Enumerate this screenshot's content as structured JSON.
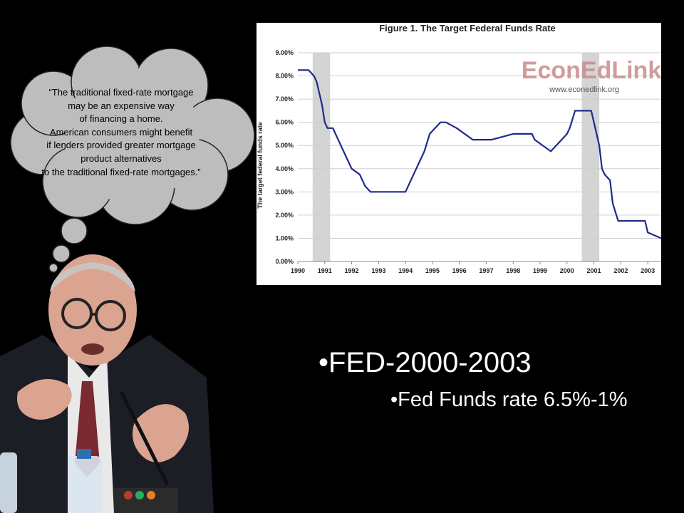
{
  "quote": {
    "lines": [
      "“The traditional fixed-rate mortgage",
      "may be an expensive way",
      "of financing a home.",
      "American consumers might benefit",
      "if lenders provided greater mortgage",
      "product alternatives",
      "to the traditional fixed-rate mortgages.”"
    ]
  },
  "bullets": {
    "main": "•FED-2000-2003",
    "sub": "•Fed Funds rate 6.5%-1%"
  },
  "watermark": {
    "brand": "EconEdLink",
    "url": "www.econedlink.org"
  },
  "colors": {
    "background": "#000000",
    "cloud": "#bdbdbd",
    "line": "#1f2a8c",
    "recession": "#d4d4d4",
    "watermark": "#c98b8b"
  },
  "chart_data": {
    "type": "line",
    "title": "Figure 1.  The Target Federal Funds Rate",
    "xlabel": "",
    "ylabel": "The target federal funds rate",
    "xlim": [
      1990,
      2003.5
    ],
    "ylim": [
      0,
      9
    ],
    "x_ticks": [
      "1990",
      "1991",
      "1992",
      "1993",
      "1994",
      "1995",
      "1996",
      "1997",
      "1998",
      "1999",
      "2000",
      "2001",
      "2002",
      "2003"
    ],
    "y_ticks": [
      "0.00%",
      "1.00%",
      "2.00%",
      "3.00%",
      "4.00%",
      "5.00%",
      "6.00%",
      "7.00%",
      "8.00%",
      "9.00%"
    ],
    "grid": true,
    "recessions": [
      [
        1990.55,
        1991.2
      ],
      [
        2000.55,
        2001.2
      ]
    ],
    "series": [
      {
        "x": [
          1990,
          1990.4,
          1990.6,
          1990.7,
          1990.8,
          1990.9,
          1991.0,
          1991.1,
          1991.3,
          1991.4,
          1991.5,
          1991.6,
          1991.8,
          1992.0,
          1992.3,
          1992.5,
          1992.7,
          1993.0,
          1993.5,
          1994.0,
          1994.1,
          1994.3,
          1994.5,
          1994.7,
          1994.9,
          1995.3,
          1995.5,
          1995.9,
          1996.5,
          1997.2,
          1998.0,
          1998.7,
          1998.8,
          1999.4,
          1999.6,
          1999.8,
          2000.0,
          2000.1,
          2000.3,
          2000.9,
          2001.0,
          2001.2,
          2001.3,
          2001.4,
          2001.6,
          2001.7,
          2001.9,
          2002.0,
          2002.9,
          2003.0,
          2003.5
        ],
        "y": [
          8.25,
          8.25,
          8.0,
          7.75,
          7.25,
          6.75,
          6.0,
          5.75,
          5.75,
          5.5,
          5.25,
          5.0,
          4.5,
          4.0,
          3.75,
          3.25,
          3.0,
          3.0,
          3.0,
          3.0,
          3.25,
          3.75,
          4.25,
          4.75,
          5.5,
          6.0,
          6.0,
          5.75,
          5.25,
          5.25,
          5.5,
          5.5,
          5.25,
          4.75,
          5.0,
          5.25,
          5.5,
          5.75,
          6.5,
          6.5,
          6.0,
          5.0,
          4.0,
          3.75,
          3.5,
          2.5,
          1.75,
          1.75,
          1.75,
          1.25,
          1.0
        ]
      }
    ]
  }
}
